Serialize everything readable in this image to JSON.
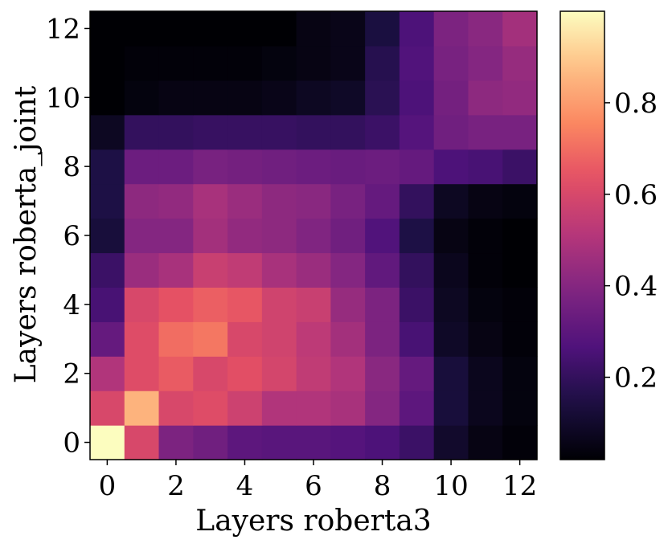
{
  "chart_data": {
    "type": "heatmap",
    "title": "",
    "xlabel": "Layers roberta3",
    "ylabel": "Layers roberta_joint",
    "x": [
      0,
      1,
      2,
      3,
      4,
      5,
      6,
      7,
      8,
      9,
      10,
      11,
      12
    ],
    "y": [
      0,
      1,
      2,
      3,
      4,
      5,
      6,
      7,
      8,
      9,
      10,
      11,
      12
    ],
    "x_ticks": [
      "0",
      "2",
      "4",
      "6",
      "8",
      "10",
      "12"
    ],
    "y_ticks": [
      "0",
      "2",
      "4",
      "6",
      "8",
      "10",
      "12"
    ],
    "colorbar": {
      "colormap": "magma",
      "range": [
        0.02,
        1.0
      ],
      "ticks": [
        "0.2",
        "0.4",
        "0.6",
        "0.8"
      ],
      "tick_values": [
        0.2,
        0.4,
        0.6,
        0.8
      ]
    },
    "values": [
      [
        1.0,
        0.6,
        0.38,
        0.35,
        0.3,
        0.29,
        0.29,
        0.28,
        0.26,
        0.22,
        0.1,
        0.05,
        0.03
      ],
      [
        0.6,
        0.85,
        0.6,
        0.62,
        0.57,
        0.5,
        0.5,
        0.48,
        0.4,
        0.3,
        0.13,
        0.07,
        0.04
      ],
      [
        0.5,
        0.62,
        0.66,
        0.6,
        0.63,
        0.59,
        0.54,
        0.5,
        0.41,
        0.32,
        0.13,
        0.07,
        0.04
      ],
      [
        0.32,
        0.62,
        0.7,
        0.72,
        0.6,
        0.58,
        0.53,
        0.47,
        0.38,
        0.25,
        0.09,
        0.05,
        0.03
      ],
      [
        0.25,
        0.6,
        0.64,
        0.67,
        0.65,
        0.58,
        0.56,
        0.44,
        0.38,
        0.22,
        0.08,
        0.04,
        0.03
      ],
      [
        0.22,
        0.45,
        0.48,
        0.56,
        0.54,
        0.48,
        0.45,
        0.4,
        0.31,
        0.2,
        0.07,
        0.03,
        0.02
      ],
      [
        0.13,
        0.4,
        0.4,
        0.47,
        0.43,
        0.42,
        0.39,
        0.35,
        0.27,
        0.15,
        0.05,
        0.03,
        0.02
      ],
      [
        0.15,
        0.42,
        0.43,
        0.48,
        0.45,
        0.42,
        0.41,
        0.37,
        0.32,
        0.2,
        0.08,
        0.05,
        0.04
      ],
      [
        0.15,
        0.34,
        0.34,
        0.37,
        0.36,
        0.35,
        0.34,
        0.33,
        0.34,
        0.32,
        0.26,
        0.25,
        0.22
      ],
      [
        0.08,
        0.2,
        0.2,
        0.21,
        0.21,
        0.21,
        0.2,
        0.2,
        0.22,
        0.28,
        0.35,
        0.37,
        0.37
      ],
      [
        0.02,
        0.04,
        0.05,
        0.05,
        0.05,
        0.06,
        0.08,
        0.09,
        0.18,
        0.26,
        0.36,
        0.42,
        0.43
      ],
      [
        0.02,
        0.03,
        0.03,
        0.03,
        0.03,
        0.04,
        0.05,
        0.06,
        0.17,
        0.27,
        0.37,
        0.4,
        0.44
      ],
      [
        0.01,
        0.02,
        0.02,
        0.02,
        0.02,
        0.02,
        0.05,
        0.06,
        0.14,
        0.26,
        0.38,
        0.41,
        0.47
      ]
    ]
  }
}
